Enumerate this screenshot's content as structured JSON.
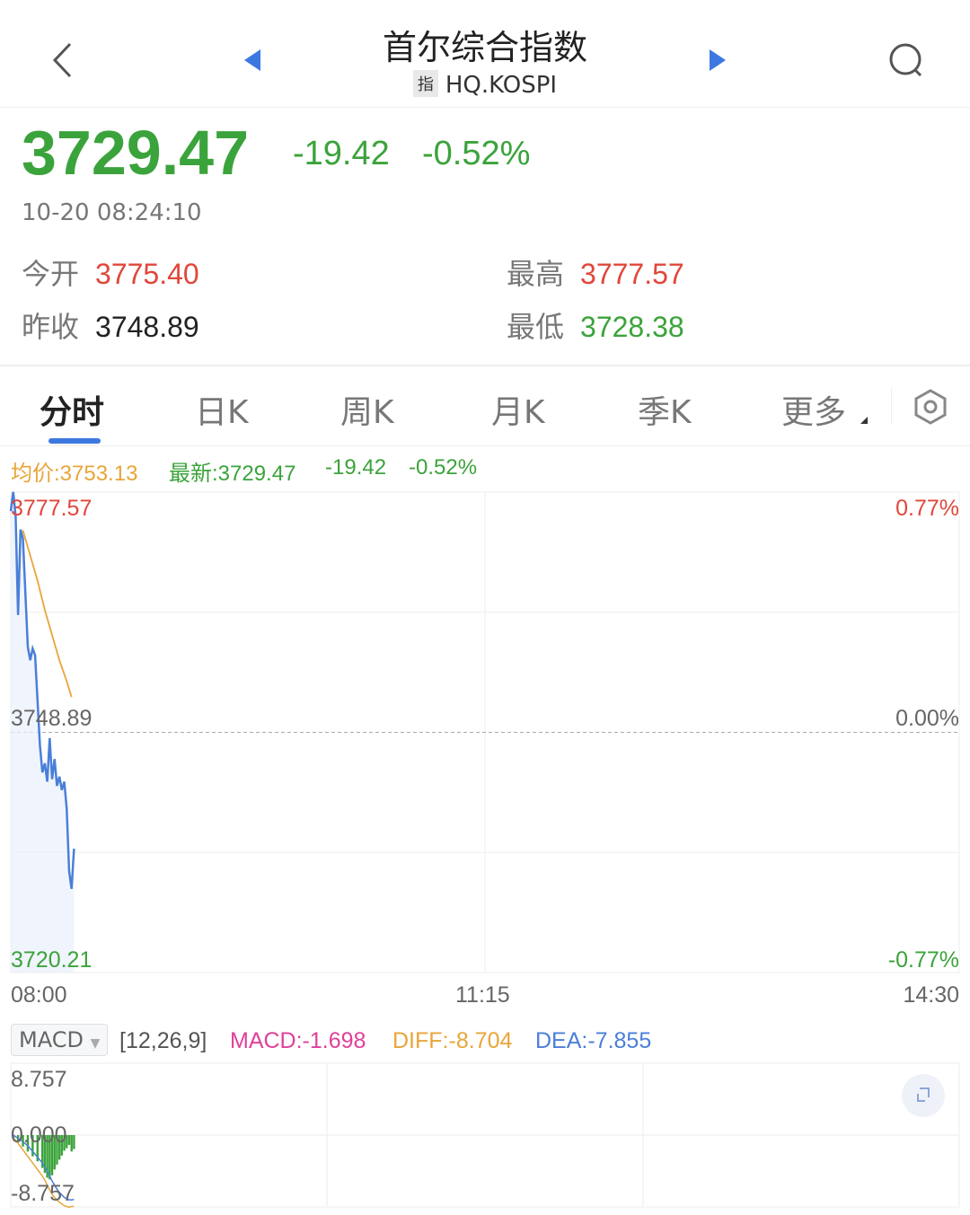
{
  "header": {
    "title": "首尔综合指数",
    "tag": "指",
    "code": "HQ.KOSPI",
    "icons": [
      "back-chevron-icon",
      "prev-triangle-icon",
      "next-triangle-icon",
      "search-icon"
    ]
  },
  "quote": {
    "price": "3729.47",
    "change": "-19.42",
    "change_pct": "-0.52%",
    "time": "10-20 08:24:10",
    "open_label": "今开",
    "open": "3775.40",
    "high_label": "最高",
    "high": "3777.57",
    "prev_label": "昨收",
    "prev": "3748.89",
    "low_label": "最低",
    "low": "3728.38"
  },
  "tabs": [
    {
      "label": "分时",
      "active": true
    },
    {
      "label": "日K"
    },
    {
      "label": "周K"
    },
    {
      "label": "月K"
    },
    {
      "label": "季K"
    },
    {
      "label": "更多"
    }
  ],
  "chart_info": {
    "avg": "均价:3753.13",
    "latest": "最新:3729.47",
    "change": "-19.42",
    "pct": "-0.52%"
  },
  "colors": {
    "up": "#e0473a",
    "down": "#3ba33b",
    "price_line": "#4a7fd8",
    "avg_line": "#e8a53a",
    "macd": "#e0409a",
    "diff": "#e8a53a",
    "dea": "#4a7fd8"
  },
  "chart_data": [
    {
      "type": "line",
      "ylim": [
        3720.21,
        3777.57
      ],
      "y_labels_left": [
        "3777.57",
        "3748.89",
        "3720.21"
      ],
      "y_labels_right": [
        "0.77%",
        "0.00%",
        "-0.77%"
      ],
      "x_labels": [
        "08:00",
        "11:15",
        "14:30"
      ],
      "x_unit": "minutes since 08:00",
      "xlim": [
        0,
        390
      ],
      "grid": true,
      "series": [
        {
          "key": "price",
          "x": [
            0,
            1,
            2,
            3,
            4,
            5,
            7,
            8,
            9,
            10,
            11,
            12,
            13,
            14,
            15,
            16,
            17,
            18,
            19,
            20,
            21,
            22,
            23,
            24,
            25,
            26
          ],
          "values": [
            3775.3,
            3777.6,
            3774.7,
            3762.9,
            3773.1,
            3772.0,
            3759.1,
            3757.5,
            3758.9,
            3758.1,
            3752.7,
            3747.3,
            3744.1,
            3745.2,
            3743.0,
            3748.2,
            3743.3,
            3745.7,
            3742.5,
            3743.6,
            3742.0,
            3743.0,
            3739.8,
            3732.3,
            3730.2,
            3735.0
          ]
        },
        {
          "key": "avg",
          "x": [
            5,
            8,
            11,
            14,
            17,
            20,
            23,
            25
          ],
          "values": [
            3773.0,
            3770.0,
            3767.0,
            3763.5,
            3760.5,
            3757.5,
            3755.0,
            3753.1
          ]
        }
      ]
    },
    {
      "type": "bar+line",
      "indicator": "MACD",
      "params": "[12,26,9]",
      "macd_label": "MACD:-1.698",
      "diff_label": "DIFF:-8.704",
      "dea_label": "DEA:-7.855",
      "ylim": [
        -8.757,
        8.757
      ],
      "y_labels": [
        "8.757",
        "0.000",
        "-8.757"
      ],
      "grid": true,
      "x": [
        1,
        3,
        5,
        7,
        9,
        11,
        13,
        14,
        15,
        16,
        17,
        18,
        19,
        20,
        21,
        22,
        23,
        24,
        25,
        26
      ],
      "macd": [
        -0.4,
        -0.9,
        -1.4,
        -2.0,
        -2.6,
        -3.2,
        -4.0,
        -4.6,
        -5.2,
        -5.4,
        -4.9,
        -4.2,
        -3.6,
        -3.0,
        -2.5,
        -1.9,
        -1.6,
        -1.2,
        -2.0,
        -1.7
      ],
      "diff": [
        -0.3,
        -1.0,
        -1.8,
        -2.6,
        -3.4,
        -4.2,
        -5.0,
        -5.5,
        -6.1,
        -6.7,
        -7.2,
        -7.6,
        -7.9,
        -8.2,
        -8.4,
        -8.6,
        -8.7,
        -8.8,
        -8.7,
        -8.7
      ],
      "dea": [
        0,
        -0.4,
        -0.8,
        -1.3,
        -2.0,
        -2.7,
        -3.4,
        -3.9,
        -4.4,
        -5.0,
        -5.6,
        -6.1,
        -6.6,
        -7.0,
        -7.3,
        -7.6,
        -7.8,
        -7.9,
        -7.9,
        -7.855
      ]
    }
  ]
}
